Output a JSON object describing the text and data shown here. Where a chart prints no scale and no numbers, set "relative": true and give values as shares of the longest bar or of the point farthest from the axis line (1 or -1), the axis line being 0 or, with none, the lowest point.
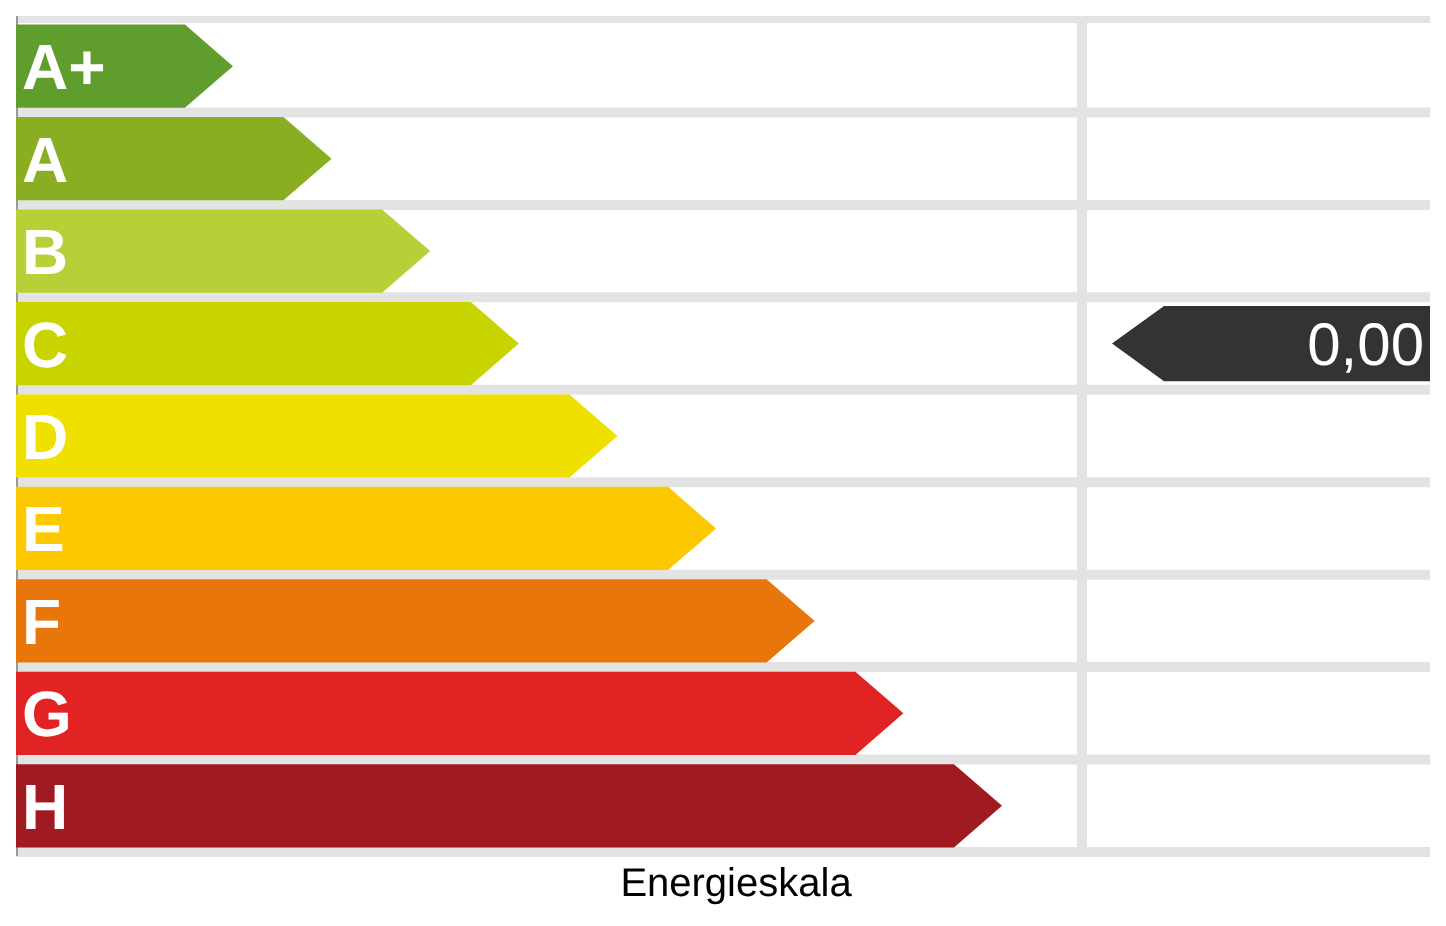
{
  "chart_data": {
    "type": "bar",
    "orientation": "horizontal",
    "relative": true,
    "xlabel": "Energieskala",
    "grid": true,
    "categories": [
      "A+",
      "A",
      "B",
      "C",
      "D",
      "E",
      "F",
      "G",
      "H"
    ],
    "values": [
      0.22,
      0.32,
      0.42,
      0.51,
      0.61,
      0.71,
      0.81,
      0.9,
      1
    ],
    "colors": [
      "#5f9d2c",
      "#8aae22",
      "#b8cf38",
      "#c8d400",
      "#f0e000",
      "#fcc900",
      "#e8760a",
      "#e12323",
      "#a01a22"
    ],
    "annotations": [
      "0,00"
    ]
  }
}
